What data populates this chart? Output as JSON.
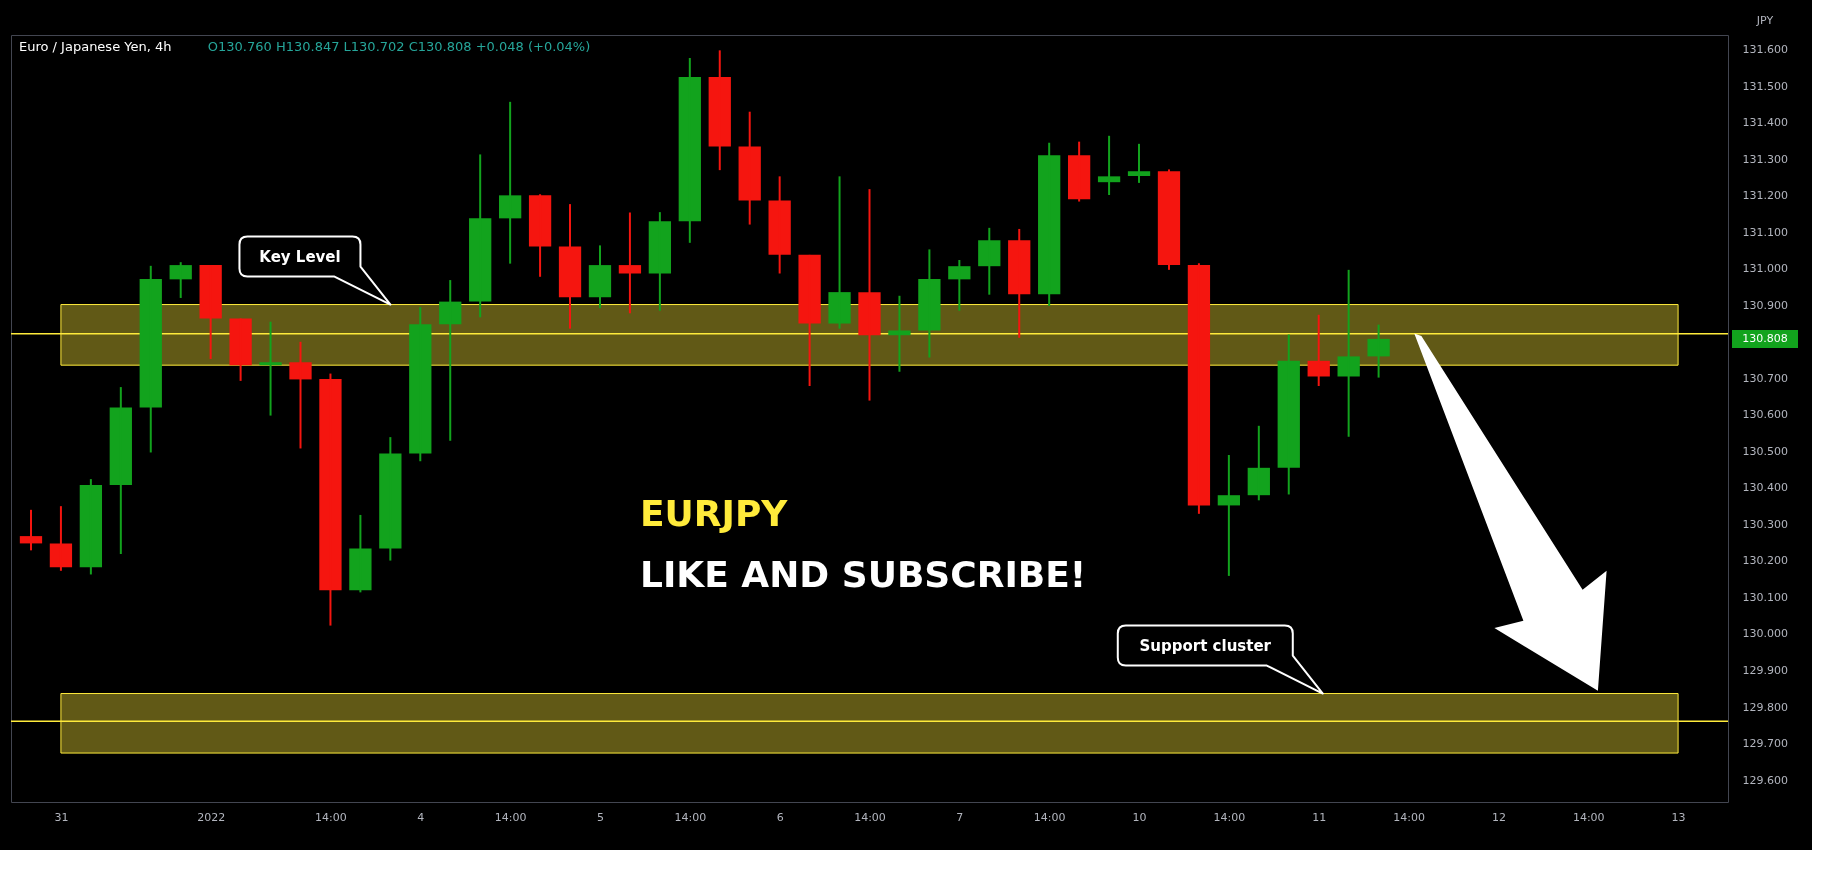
{
  "chart_data": {
    "type": "candlestick",
    "title": "Euro / Japanese Yen, 4h",
    "subtitle": "O130.760  H130.847  L130.702  C130.808  +0.048 (+0.04%)",
    "ylabel": "JPY",
    "categories": [
      null,
      "31",
      null,
      null,
      null,
      null,
      "2022",
      null,
      null,
      null,
      "14:00",
      null,
      null,
      "4",
      null,
      null,
      "14:00",
      null,
      null,
      "5",
      null,
      null,
      "14:00",
      null,
      null,
      "6",
      null,
      null,
      "14:00",
      null,
      null,
      "7",
      null,
      null,
      "14:00",
      null,
      null,
      "10",
      null,
      null,
      "14:00",
      null,
      null,
      "11",
      null,
      null,
      "14:00",
      null,
      null,
      "12",
      null,
      null,
      "14:00",
      null,
      null,
      "13",
      null
    ],
    "ohlc": [
      [
        130.268,
        130.34,
        130.229,
        130.248
      ],
      [
        130.248,
        130.35,
        130.173,
        130.183
      ],
      [
        130.183,
        130.424,
        130.163,
        130.408
      ],
      [
        130.408,
        130.676,
        130.219,
        130.62
      ],
      [
        130.62,
        131.008,
        130.497,
        130.972
      ],
      [
        130.971,
        131.018,
        130.92,
        131.01
      ],
      [
        131.01,
        131.01,
        130.753,
        130.864
      ],
      [
        130.864,
        130.864,
        130.693,
        130.736
      ],
      [
        130.736,
        130.855,
        130.598,
        130.744
      ],
      [
        130.744,
        130.8,
        130.508,
        130.697
      ],
      [
        130.698,
        130.713,
        130.023,
        130.12
      ],
      [
        130.12,
        130.326,
        130.114,
        130.234
      ],
      [
        130.234,
        130.539,
        130.201,
        130.494
      ],
      [
        130.494,
        130.895,
        130.473,
        130.848
      ],
      [
        130.848,
        130.969,
        130.529,
        130.91
      ],
      [
        130.91,
        131.313,
        130.867,
        131.138
      ],
      [
        131.138,
        131.457,
        131.014,
        131.201
      ],
      [
        131.201,
        131.204,
        130.978,
        131.061
      ],
      [
        131.061,
        131.177,
        130.836,
        130.922
      ],
      [
        130.922,
        131.064,
        130.892,
        131.01
      ],
      [
        131.01,
        131.154,
        130.878,
        130.987
      ],
      [
        130.987,
        131.155,
        130.885,
        131.13
      ],
      [
        131.13,
        131.577,
        131.071,
        131.525
      ],
      [
        131.525,
        131.598,
        131.27,
        131.335
      ],
      [
        131.335,
        131.43,
        131.121,
        131.187
      ],
      [
        131.187,
        131.253,
        130.987,
        131.038
      ],
      [
        131.038,
        131.038,
        130.679,
        130.85
      ],
      [
        130.85,
        131.253,
        130.836,
        130.936
      ],
      [
        130.936,
        131.218,
        130.639,
        130.818
      ],
      [
        130.818,
        130.926,
        130.718,
        130.831
      ],
      [
        130.831,
        131.053,
        130.757,
        130.972
      ],
      [
        130.971,
        131.024,
        130.885,
        131.007
      ],
      [
        131.007,
        131.112,
        130.929,
        131.078
      ],
      [
        131.078,
        131.109,
        130.811,
        130.93
      ],
      [
        130.93,
        131.345,
        130.898,
        131.311
      ],
      [
        131.311,
        131.348,
        131.184,
        131.19
      ],
      [
        131.237,
        131.364,
        131.202,
        131.253
      ],
      [
        131.254,
        131.342,
        131.235,
        131.267
      ],
      [
        131.267,
        131.272,
        130.997,
        131.01
      ],
      [
        131.01,
        131.015,
        130.329,
        130.352
      ],
      [
        130.352,
        130.49,
        130.159,
        130.38
      ],
      [
        130.38,
        130.57,
        130.366,
        130.455
      ],
      [
        130.455,
        130.82,
        130.382,
        130.748
      ],
      [
        130.748,
        130.874,
        130.679,
        130.705
      ],
      [
        130.705,
        130.997,
        130.54,
        130.76
      ],
      [
        130.76,
        130.847,
        130.702,
        130.808
      ],
      null,
      null,
      null,
      null,
      null,
      null,
      null,
      null,
      null,
      null,
      null
    ],
    "colors": [
      "#f5150f",
      "#f5150f",
      "#12a31d",
      "#12a31d",
      "#12a31d",
      "#12a31d",
      "#f5150f",
      "#f5150f",
      "#12a31d",
      "#f5150f",
      "#f5150f",
      "#12a31d",
      "#12a31d",
      "#12a31d",
      "#12a31d",
      "#12a31d",
      "#12a31d",
      "#f5150f",
      "#f5150f",
      "#12a31d",
      "#f5150f",
      "#12a31d",
      "#12a31d",
      "#f5150f",
      "#f5150f",
      "#f5150f",
      "#f5150f",
      "#12a31d",
      "#f5150f",
      "#12a31d",
      "#12a31d",
      "#12a31d",
      "#12a31d",
      "#f5150f",
      "#12a31d",
      "#f5150f",
      "#12a31d",
      "#12a31d",
      "#f5150f",
      "#f5150f",
      "#12a31d",
      "#12a31d",
      "#12a31d",
      "#f5150f",
      "#12a31d",
      "#12a31d",
      null,
      null,
      null,
      null,
      null,
      null,
      null,
      null,
      null,
      null,
      null
    ],
    "ylim": [
      129.54,
      131.64
    ],
    "yticks": [
      {
        "value": 129.6,
        "label": "129.600"
      },
      {
        "value": 129.7,
        "label": "129.700"
      },
      {
        "value": 129.8,
        "label": "129.800"
      },
      {
        "value": 129.9,
        "label": "129.900"
      },
      {
        "value": 130.0,
        "label": "130.000"
      },
      {
        "value": 130.1,
        "label": "130.100"
      },
      {
        "value": 130.2,
        "label": "130.200"
      },
      {
        "value": 130.3,
        "label": "130.300"
      },
      {
        "value": 130.4,
        "label": "130.400"
      },
      {
        "value": 130.5,
        "label": "130.500"
      },
      {
        "value": 130.6,
        "label": "130.600"
      },
      {
        "value": 130.7,
        "label": "130.700"
      },
      {
        "value": 130.9,
        "label": "130.900"
      },
      {
        "value": 131.0,
        "label": "131.000"
      },
      {
        "value": 131.1,
        "label": "131.100"
      },
      {
        "value": 131.2,
        "label": "131.200"
      },
      {
        "value": 131.3,
        "label": "131.300"
      },
      {
        "value": 131.4,
        "label": "131.400"
      },
      {
        "value": 131.5,
        "label": "131.500"
      },
      {
        "value": 131.6,
        "label": "131.600"
      }
    ],
    "bands": [
      {
        "axis": "y",
        "from": 130.736,
        "to": 130.902,
        "label": "Key Level",
        "color": "#ffeb3b"
      },
      {
        "axis": "y",
        "from": 129.674,
        "to": 129.837,
        "label": "Support cluster",
        "color": "#ffeb3b"
      }
    ],
    "ref_lines": [
      {
        "axis": "y",
        "value": 130.822,
        "color": "#ffeb3b"
      },
      {
        "axis": "y",
        "value": 129.761,
        "color": "#ffeb3b"
      }
    ],
    "annotations": [
      "EURJPY",
      "LIKE AND SUBSCRIBE!",
      "130.808"
    ]
  }
}
